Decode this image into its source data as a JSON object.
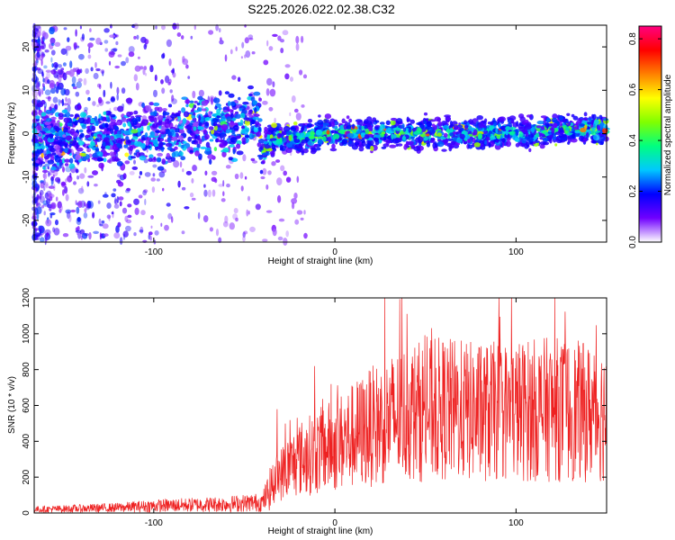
{
  "title": "S225.2026.022.02.38.C32",
  "chart_data": [
    {
      "type": "heatmap",
      "name": "spectrogram",
      "xlabel": "Height of straight line (km)",
      "ylabel": "Frequency (Hz)",
      "xlim": [
        -166,
        150
      ],
      "ylim": [
        -25,
        25
      ],
      "xticks": [
        -100,
        0,
        100
      ],
      "xtick_labels": [
        "-100",
        "0",
        "100"
      ],
      "yticks": [
        -20,
        -10,
        0,
        10,
        20
      ],
      "ytick_labels": [
        "-20",
        "-10",
        "0",
        "10",
        "20"
      ],
      "trend_track": {
        "x": [
          -166,
          -140,
          -120,
          -100,
          -80,
          -60,
          -42,
          -40,
          -35,
          -20,
          0,
          20,
          40,
          60,
          80,
          100,
          120,
          140,
          150
        ],
        "y": [
          -1,
          -1,
          -1,
          0,
          1,
          2,
          4,
          -5,
          -1,
          -1,
          0,
          0,
          0,
          0,
          0,
          0,
          1,
          1,
          1
        ]
      },
      "colorbar": {
        "label": "Normalized spectral amplitude",
        "range": [
          0.0,
          0.85
        ],
        "ticks": [
          0.0,
          0.2,
          0.4,
          0.6,
          0.8
        ],
        "tick_labels": [
          "0.0",
          "0.2",
          "0.4",
          "0.6",
          "0.8"
        ],
        "colors": [
          "#ffffff",
          "#7000ff",
          "#0000ff",
          "#00c8ff",
          "#00ff80",
          "#80ff00",
          "#ffff00",
          "#ff8000",
          "#ff0000",
          "#ff0080"
        ]
      }
    },
    {
      "type": "line",
      "name": "snr",
      "xlabel": "Height of straight line (km)",
      "ylabel": "SNR (10 * v/v)",
      "xlim": [
        -166,
        150
      ],
      "ylim": [
        0,
        1200
      ],
      "xticks": [
        -100,
        0,
        100
      ],
      "xtick_labels": [
        "-100",
        "0",
        "100"
      ],
      "yticks": [
        0,
        200,
        400,
        600,
        800,
        1000,
        1200
      ],
      "ytick_labels": [
        "0",
        "200",
        "400",
        "600",
        "800",
        "1000",
        "1200"
      ],
      "color": "#ee2222",
      "envelope": {
        "x": [
          -166,
          -140,
          -120,
          -100,
          -80,
          -60,
          -40,
          -32,
          -20,
          0,
          20,
          40,
          60,
          80,
          100,
          120,
          140,
          150
        ],
        "y": [
          20,
          25,
          30,
          40,
          45,
          50,
          60,
          200,
          300,
          380,
          480,
          560,
          580,
          560,
          570,
          580,
          560,
          560
        ]
      }
    }
  ]
}
